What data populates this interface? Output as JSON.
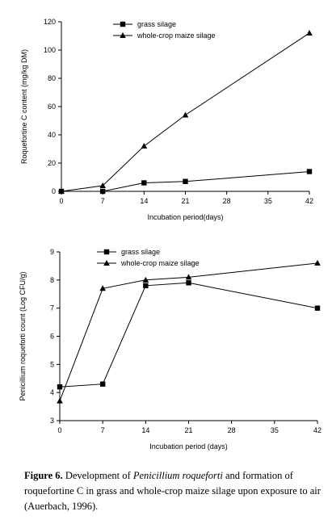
{
  "chart_data": [
    {
      "type": "line",
      "x": [
        0,
        7,
        14,
        21,
        42
      ],
      "series": [
        {
          "name": "grass silage",
          "marker": "square",
          "values": [
            0,
            0,
            6,
            7,
            14
          ]
        },
        {
          "name": "whole-crop maize silage",
          "marker": "triangle",
          "values": [
            0,
            4,
            32,
            54,
            112
          ]
        }
      ],
      "xlabel": "Incubation period(days)",
      "ylabel": "Roquefortine C content  (mg/kg DM)",
      "xlim": [
        0,
        42
      ],
      "ylim": [
        0,
        120
      ],
      "xticks": [
        "0",
        "7",
        "14",
        "21",
        "28",
        "35",
        "42"
      ],
      "yticks": [
        "0",
        "20",
        "40",
        "60",
        "80",
        "100",
        "120"
      ],
      "grid": false,
      "legend": "top-left"
    },
    {
      "type": "line",
      "x": [
        0,
        7,
        14,
        21,
        42
      ],
      "series": [
        {
          "name": "grass silage",
          "marker": "square",
          "values": [
            4.2,
            4.3,
            7.8,
            7.9,
            7.0
          ]
        },
        {
          "name": "whole-crop maize silage",
          "marker": "triangle",
          "values": [
            3.7,
            7.7,
            8.0,
            8.1,
            8.6
          ]
        }
      ],
      "xlabel": "Incubation period (days)",
      "ylabel": "Penicillium roqueforti count (Log CFU/g)",
      "xlim": [
        0,
        42
      ],
      "ylim": [
        3,
        9
      ],
      "xticks": [
        "0",
        "7",
        "14",
        "21",
        "28",
        "35",
        "42"
      ],
      "yticks": [
        "3",
        "4",
        "5",
        "6",
        "7",
        "8",
        "9"
      ],
      "grid": false,
      "legend": "top-left"
    }
  ],
  "caption": {
    "label": "Figure 6.",
    "text_1": " Development of ",
    "species": "Penicillium roqueforti",
    "text_2": " and formation of roquefortine C in grass and whole-crop maize silage upon exposure to air (Auerbach, 1996)."
  }
}
